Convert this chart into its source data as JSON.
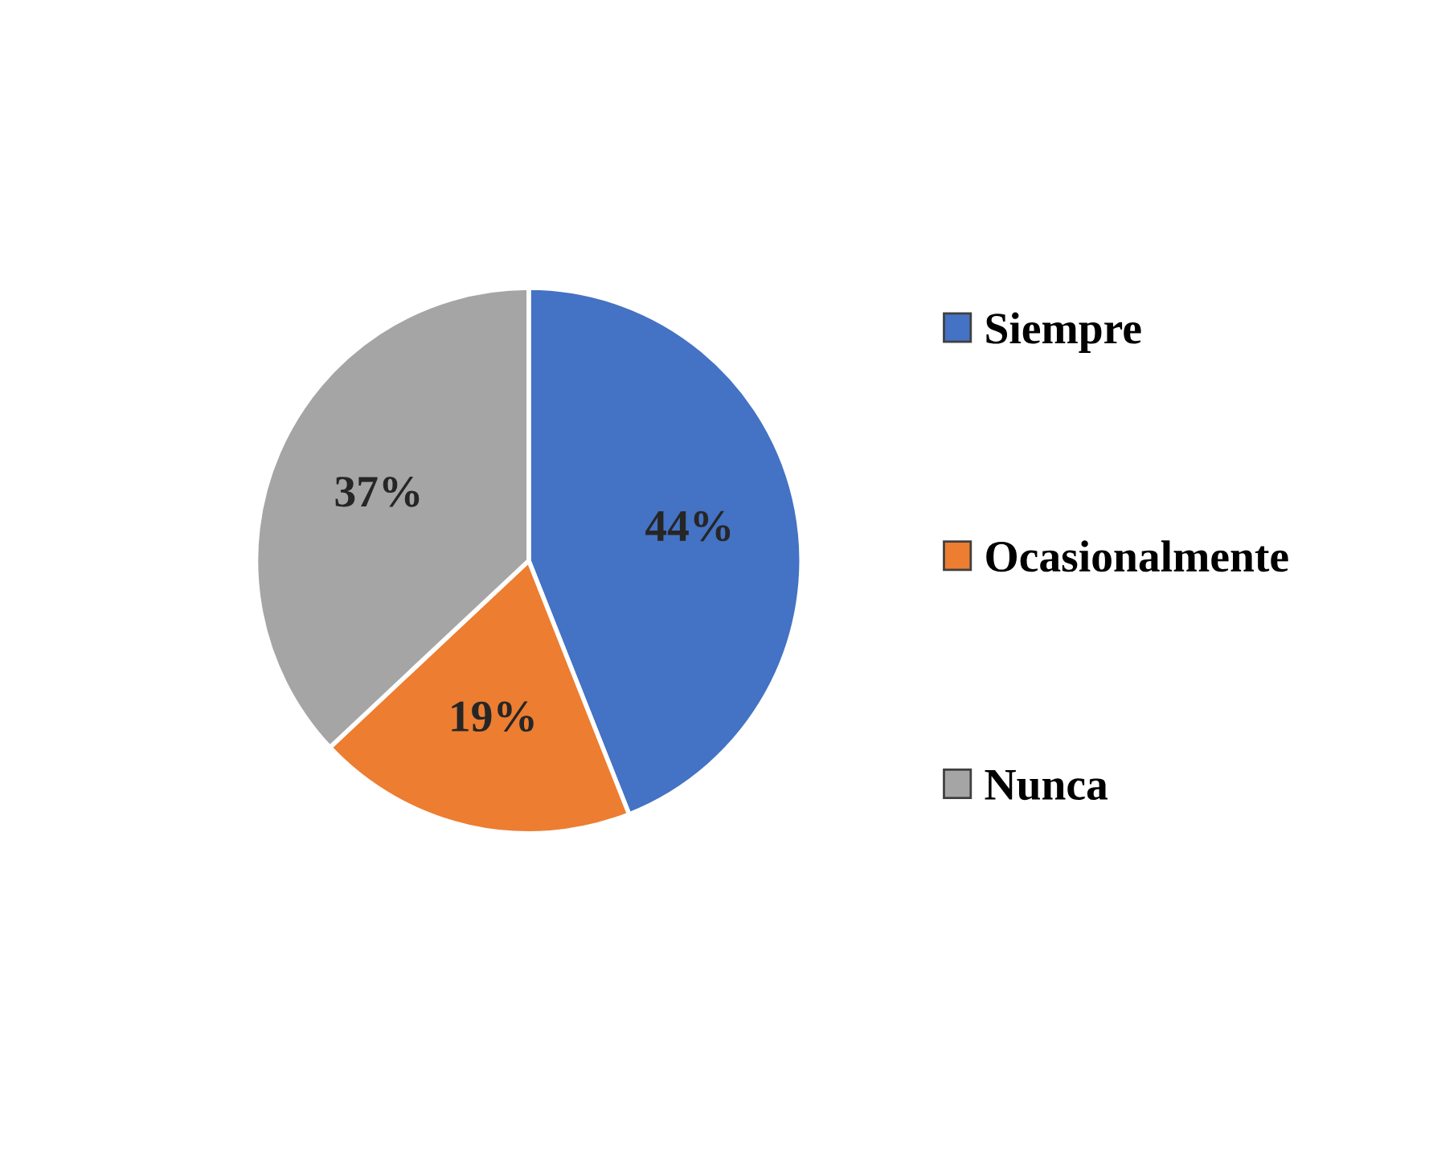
{
  "chart_data": {
    "type": "pie",
    "categories": [
      "Siempre",
      "Ocasionalmente",
      "Nunca"
    ],
    "values": [
      44,
      19,
      37
    ],
    "colors": [
      "#4472c4",
      "#ed7d31",
      "#a5a5a5"
    ],
    "value_labels": [
      "44%",
      "19%",
      "37%"
    ],
    "legend": "right"
  }
}
